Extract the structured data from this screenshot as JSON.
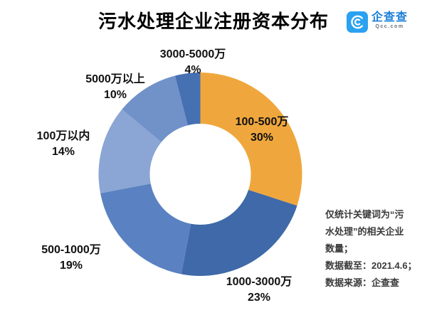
{
  "title": "污水处理企业注册资本分布",
  "logo": {
    "name": "企查查",
    "domain": "Qcc.com",
    "brand_color": "#2ba1f2",
    "text_color": "#1a7fd9"
  },
  "chart_data": {
    "type": "pie",
    "donut": true,
    "title": "污水处理企业注册资本分布",
    "direction": "clockwise",
    "start_angle_deg": 0,
    "categories": [
      "100-500万",
      "1000-3000万",
      "500-1000万",
      "100万以内",
      "5000万以上",
      "3000-5000万"
    ],
    "values": [
      30,
      23,
      19,
      14,
      10,
      4
    ],
    "pct_labels": [
      "30%",
      "23%",
      "19%",
      "14%",
      "10%",
      "4%"
    ],
    "colors": [
      "#efa73d",
      "#3f69a8",
      "#5a81c1",
      "#8ba5d4",
      "#7191c9",
      "#4571b3"
    ],
    "legend": "none",
    "labels_position": "outside-except-largest"
  },
  "annotation": {
    "lines": [
      "仅统计关键词为“污",
      "水处理”的相关企业",
      "数量；",
      "数据截至：2021.4.6；",
      "数据来源：企查查"
    ]
  }
}
